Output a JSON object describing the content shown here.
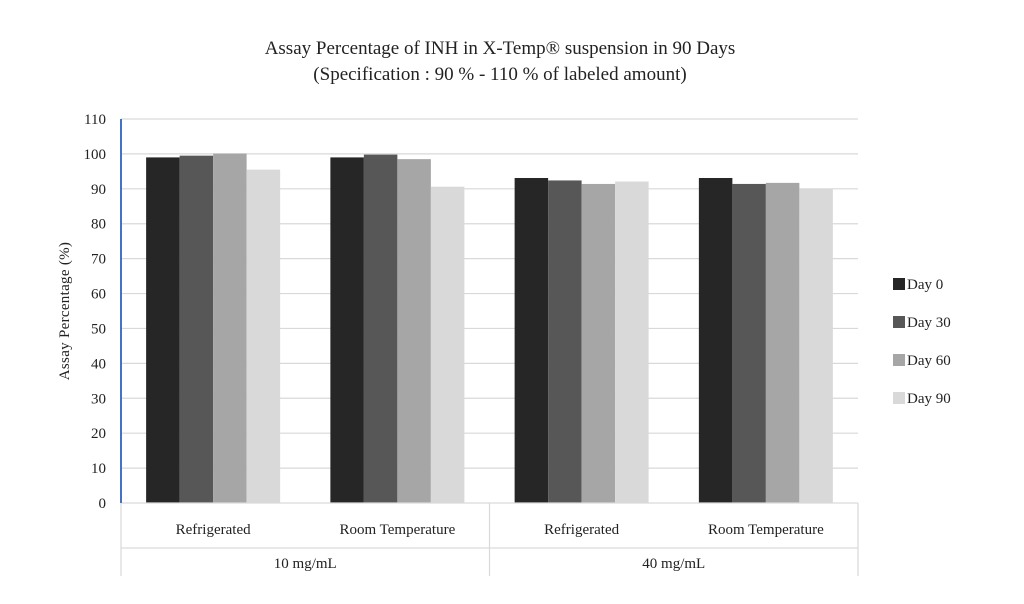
{
  "chart_data": {
    "type": "bar",
    "title": "Assay Percentage of INH in X-Temp® suspension in 90 Days",
    "subtitle": "(Specification : 90 % - 110 % of labeled amount)",
    "ylabel": "Assay Percentage (%)",
    "xlabel": "",
    "ylim": [
      0,
      110
    ],
    "yticks": [
      0,
      10,
      20,
      30,
      40,
      50,
      60,
      70,
      80,
      90,
      100,
      110
    ],
    "grid": true,
    "legend_position": "right",
    "categories": [
      "Refrigerated",
      "Room Temperature",
      "Refrigerated",
      "Room Temperature"
    ],
    "groups": [
      {
        "label": "10 mg/mL",
        "categories": [
          "Refrigerated",
          "Room Temperature"
        ]
      },
      {
        "label": "40 mg/mL",
        "categories": [
          "Refrigerated",
          "Room Temperature"
        ]
      }
    ],
    "series": [
      {
        "name": "Day 0",
        "color": "#262626",
        "values": [
          99.0,
          99.0,
          93.1,
          93.1
        ]
      },
      {
        "name": "Day 30",
        "color": "#575757",
        "values": [
          99.5,
          99.8,
          92.4,
          91.4
        ]
      },
      {
        "name": "Day 60",
        "color": "#a6a6a6",
        "values": [
          100.1,
          98.5,
          91.4,
          91.7
        ]
      },
      {
        "name": "Day 90",
        "color": "#d9d9d9",
        "values": [
          95.5,
          90.6,
          92.1,
          90.1
        ]
      }
    ],
    "colors": {
      "grid": "#d9d9d9",
      "axis": "#4472c4",
      "text": "#222222"
    }
  }
}
